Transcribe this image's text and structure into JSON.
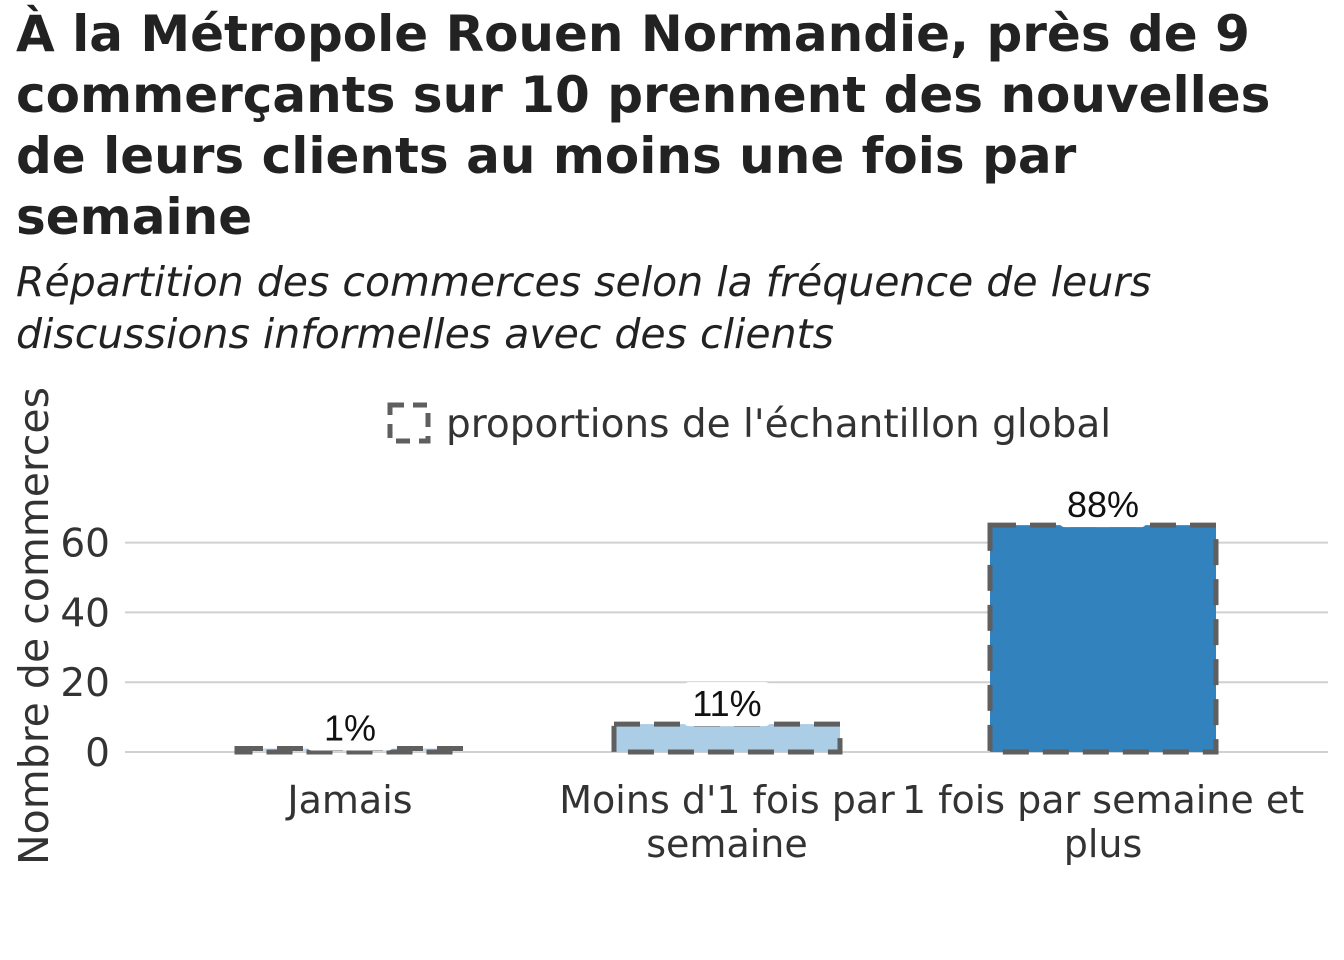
{
  "title": "À la Métropole Rouen Normandie, près de 9 commerçants sur 10 prennent des nouvelles de leurs clients au moins une fois par semaine",
  "subtitle": "Répartition des commerces selon la fréquence de leurs discussions informelles avec des clients",
  "chart_data": {
    "type": "bar",
    "ylabel": "Nombre de commerces",
    "xlabel": "",
    "ylim": [
      0,
      75
    ],
    "yticks": [
      0,
      20,
      40,
      60
    ],
    "grid": true,
    "legend": {
      "position": "top-center",
      "label": "proportions de l'échantillon global"
    },
    "categories": [
      [
        "Jamais"
      ],
      [
        "Moins d'1 fois par",
        "semaine"
      ],
      [
        "1 fois par semaine et",
        "plus"
      ]
    ],
    "values": [
      1,
      8,
      65
    ],
    "reference_values": [
      1,
      8,
      65
    ],
    "labels": [
      "1%",
      "11%",
      "88%"
    ],
    "colors": [
      "#c6dbef",
      "#abcde6",
      "#3182bd"
    ],
    "reference_style": "dashed-outline",
    "reference_color": "#5f5f5f",
    "grid_color": "#d0d0d0"
  }
}
